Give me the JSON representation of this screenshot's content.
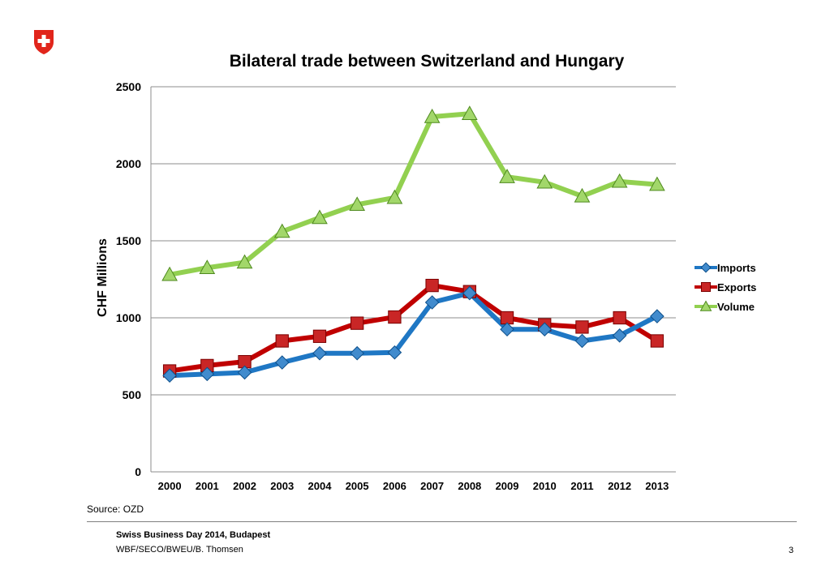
{
  "logo": {
    "name": "swiss-cross",
    "colors": {
      "red": "#e1251b",
      "white": "#ffffff"
    }
  },
  "source": "Source: OZD",
  "footer": {
    "title": "Swiss Business Day 2014, Budapest",
    "subtitle": "WBF/SECO/BWEU/B. Thomsen",
    "page_number": "3"
  },
  "chart_data": {
    "type": "line",
    "title": "Bilateral trade between Switzerland and Hungary",
    "xlabel": "",
    "ylabel": "CHF Millions",
    "categories": [
      "2000",
      "2001",
      "2002",
      "2003",
      "2004",
      "2005",
      "2006",
      "2007",
      "2008",
      "2009",
      "2010",
      "2011",
      "2012",
      "2013"
    ],
    "ylim": [
      0,
      2500
    ],
    "yticks": [
      0,
      500,
      1000,
      1500,
      2000,
      2500
    ],
    "grid": "horizontal",
    "legend": "right",
    "series": [
      {
        "name": "Imports",
        "color": "#1f77c4",
        "marker": "diamond",
        "values": [
          625,
          635,
          645,
          710,
          770,
          770,
          775,
          1100,
          1160,
          925,
          925,
          850,
          885,
          1010
        ]
      },
      {
        "name": "Exports",
        "color": "#c00000",
        "marker": "square",
        "values": [
          655,
          690,
          715,
          850,
          880,
          965,
          1005,
          1210,
          1170,
          1000,
          955,
          940,
          1000,
          850
        ]
      },
      {
        "name": "Volume",
        "color": "#92d050",
        "marker": "triangle",
        "values": [
          1280,
          1325,
          1360,
          1560,
          1650,
          1735,
          1780,
          2305,
          2325,
          1915,
          1880,
          1790,
          1885,
          1865
        ]
      }
    ]
  }
}
